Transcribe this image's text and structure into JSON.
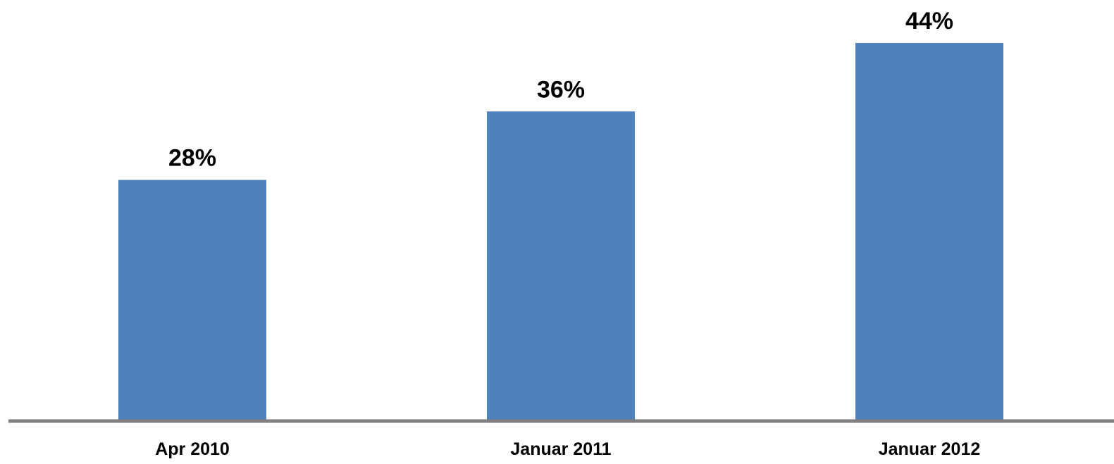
{
  "chart_data": {
    "type": "bar",
    "categories": [
      "Apr 2010",
      "Januar 2011",
      "Januar 2012"
    ],
    "values": [
      28,
      36,
      44
    ],
    "data_labels": [
      "28%",
      "36%",
      "44%"
    ],
    "unit": "%",
    "title": "",
    "xlabel": "",
    "ylabel": "",
    "ylim": [
      0,
      44
    ],
    "grid": false,
    "legend": "none",
    "bar_color": "#4f81bd",
    "axis_color": "#808080"
  }
}
